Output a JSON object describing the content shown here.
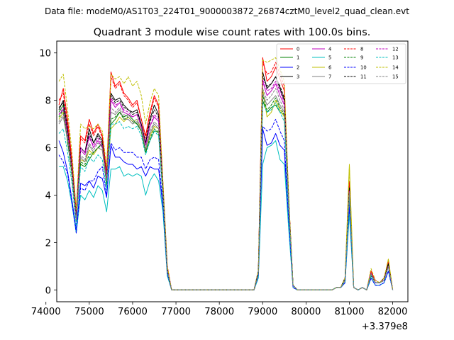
{
  "chart_data": {
    "type": "line",
    "suptitle": "Data file: modeM0/AS1T03_224T01_9000003872_26874cztM0_level2_quad_clean.evt",
    "title": "Quadrant 3 module wise count rates with 100.0s bins.",
    "xlabel": "",
    "ylabel": "",
    "x_offset_label": "+3.379e8",
    "xlim": [
      74250,
      82350
    ],
    "ylim": [
      -0.5,
      10.5
    ],
    "xticks": [
      74000,
      75000,
      76000,
      77000,
      78000,
      79000,
      80000,
      81000,
      82000
    ],
    "xtick_labels": [
      "74000",
      "75000",
      "76000",
      "77000",
      "78000",
      "79000",
      "80000",
      "81000",
      "82000"
    ],
    "yticks": [
      0,
      2,
      4,
      6,
      8,
      10
    ],
    "ytick_labels": [
      "0",
      "2",
      "4",
      "6",
      "8",
      "10"
    ],
    "grid": false,
    "legend_position": "top-right",
    "x": [
      74300,
      74400,
      74500,
      74600,
      74700,
      74800,
      74900,
      75000,
      75100,
      75200,
      75300,
      75400,
      75500,
      75600,
      75700,
      75800,
      75900,
      76000,
      76100,
      76200,
      76300,
      76400,
      76500,
      76600,
      76700,
      76800,
      76900,
      77000,
      78800,
      78900,
      79000,
      79100,
      79200,
      79300,
      79400,
      79500,
      79600,
      79700,
      79800,
      79900,
      80600,
      80700,
      80800,
      80900,
      81000,
      81100,
      81200,
      81300,
      81400,
      81500,
      81600,
      81700,
      81800,
      81900,
      82000
    ],
    "series": [
      {
        "name": "0",
        "color": "#ff0000",
        "dash": "solid",
        "values": [
          7.8,
          8.5,
          7.2,
          5.5,
          3.3,
          6.5,
          6.3,
          7.2,
          6.6,
          7.0,
          6.5,
          5.0,
          9.2,
          8.6,
          8.8,
          8.3,
          8.1,
          7.8,
          8.0,
          7.2,
          6.5,
          7.5,
          8.2,
          7.8,
          4.5,
          1.0,
          0.0,
          0.0,
          0.0,
          0.8,
          9.8,
          8.8,
          9.0,
          9.4,
          8.9,
          8.4,
          3.9,
          0.2,
          0.0,
          0.0,
          0.0,
          0.1,
          0.1,
          0.5,
          4.5,
          0.1,
          0.0,
          0.1,
          0.0,
          0.8,
          0.3,
          0.3,
          0.5,
          1.2,
          0.0
        ]
      },
      {
        "name": "1",
        "color": "#008000",
        "dash": "solid",
        "values": [
          7.5,
          7.8,
          6.2,
          5.0,
          3.0,
          5.3,
          5.2,
          5.5,
          5.8,
          6.0,
          6.2,
          4.5,
          7.0,
          7.2,
          7.5,
          7.3,
          7.4,
          7.2,
          7.0,
          6.7,
          5.8,
          6.3,
          6.7,
          6.7,
          4.0,
          0.8,
          0.0,
          0.0,
          0.0,
          0.7,
          8.0,
          7.5,
          7.7,
          7.8,
          7.5,
          7.4,
          3.6,
          0.2,
          0.0,
          0.0,
          0.0,
          0.1,
          0.1,
          0.4,
          4.0,
          0.1,
          0.0,
          0.1,
          0.0,
          0.6,
          0.3,
          0.3,
          0.4,
          1.0,
          0.0
        ]
      },
      {
        "name": "2",
        "color": "#0000ff",
        "dash": "solid",
        "values": [
          6.3,
          5.8,
          5.0,
          3.8,
          2.5,
          4.5,
          4.4,
          4.6,
          4.3,
          4.8,
          4.7,
          3.9,
          6.1,
          5.6,
          5.6,
          5.4,
          5.3,
          5.3,
          5.1,
          5.2,
          4.8,
          5.2,
          5.1,
          5.1,
          3.5,
          0.7,
          0.0,
          0.0,
          0.0,
          0.6,
          6.8,
          6.1,
          6.2,
          6.6,
          6.1,
          5.9,
          2.8,
          0.1,
          0.0,
          0.0,
          0.0,
          0.1,
          0.1,
          0.3,
          3.5,
          0.1,
          0.0,
          0.1,
          0.0,
          0.5,
          0.2,
          0.2,
          0.3,
          0.8,
          0.0
        ]
      },
      {
        "name": "3",
        "color": "#000000",
        "dash": "solid",
        "values": [
          7.6,
          8.0,
          6.8,
          5.2,
          3.1,
          6.0,
          5.8,
          6.8,
          6.2,
          6.6,
          6.3,
          4.8,
          8.3,
          8.0,
          8.1,
          7.8,
          7.6,
          7.5,
          7.6,
          7.0,
          6.2,
          7.2,
          7.8,
          7.4,
          4.3,
          0.9,
          0.0,
          0.0,
          0.0,
          0.8,
          9.2,
          8.5,
          8.7,
          9.0,
          8.5,
          8.0,
          3.8,
          0.2,
          0.0,
          0.0,
          0.0,
          0.1,
          0.1,
          0.5,
          4.4,
          0.1,
          0.0,
          0.1,
          0.0,
          0.7,
          0.3,
          0.3,
          0.5,
          1.1,
          0.0
        ]
      },
      {
        "name": "4",
        "color": "#bf00bf",
        "dash": "solid",
        "values": [
          7.4,
          7.6,
          6.6,
          5.1,
          3.0,
          5.9,
          5.7,
          6.5,
          6.0,
          6.3,
          6.0,
          4.6,
          8.0,
          7.7,
          7.9,
          7.5,
          7.4,
          7.3,
          7.4,
          6.9,
          6.1,
          6.9,
          7.3,
          7.1,
          4.2,
          0.9,
          0.0,
          0.0,
          0.0,
          0.7,
          8.8,
          8.2,
          8.4,
          8.7,
          8.2,
          7.8,
          3.7,
          0.2,
          0.0,
          0.0,
          0.0,
          0.1,
          0.1,
          0.4,
          4.2,
          0.1,
          0.0,
          0.1,
          0.0,
          0.7,
          0.3,
          0.3,
          0.4,
          1.0,
          0.0
        ]
      },
      {
        "name": "5",
        "color": "#00bfbf",
        "dash": "solid",
        "values": [
          5.2,
          5.2,
          4.6,
          3.6,
          2.4,
          4.0,
          3.8,
          4.2,
          3.9,
          4.4,
          4.2,
          3.3,
          5.1,
          5.1,
          5.2,
          4.8,
          4.9,
          4.8,
          4.9,
          4.8,
          4.0,
          4.6,
          4.9,
          4.6,
          3.3,
          0.6,
          0.0,
          0.0,
          0.0,
          0.5,
          5.3,
          6.0,
          6.1,
          6.3,
          5.5,
          5.3,
          2.6,
          0.1,
          0.0,
          0.0,
          0.0,
          0.1,
          0.1,
          0.3,
          3.2,
          0.1,
          0.0,
          0.1,
          0.0,
          0.5,
          0.2,
          0.2,
          0.3,
          0.8,
          0.0
        ]
      },
      {
        "name": "6",
        "color": "#bfbf00",
        "dash": "solid",
        "values": [
          7.2,
          7.5,
          6.4,
          5.0,
          2.9,
          5.5,
          5.4,
          5.9,
          5.7,
          6.0,
          5.9,
          4.5,
          6.8,
          7.0,
          7.3,
          7.1,
          7.3,
          7.1,
          7.2,
          6.8,
          5.9,
          6.5,
          6.9,
          6.8,
          4.0,
          0.8,
          0.0,
          0.0,
          0.0,
          0.7,
          8.5,
          7.3,
          7.5,
          8.0,
          7.6,
          7.3,
          3.5,
          0.2,
          0.0,
          0.0,
          0.0,
          0.1,
          0.1,
          0.4,
          5.3,
          0.1,
          0.0,
          0.1,
          0.0,
          0.6,
          0.3,
          0.3,
          0.4,
          1.3,
          0.0
        ]
      },
      {
        "name": "7",
        "color": "#808080",
        "dash": "solid",
        "values": [
          7.0,
          7.3,
          6.3,
          4.9,
          2.9,
          5.6,
          5.4,
          6.1,
          5.8,
          6.0,
          5.9,
          4.5,
          7.5,
          7.4,
          7.6,
          7.2,
          7.2,
          7.0,
          7.1,
          6.7,
          5.9,
          6.6,
          7.0,
          6.8,
          4.0,
          0.8,
          0.0,
          0.0,
          0.0,
          0.7,
          8.3,
          7.8,
          8.0,
          8.2,
          7.8,
          7.5,
          3.6,
          0.2,
          0.0,
          0.0,
          0.0,
          0.1,
          0.1,
          0.4,
          4.1,
          0.1,
          0.0,
          0.1,
          0.0,
          0.6,
          0.3,
          0.3,
          0.4,
          1.0,
          0.0
        ]
      },
      {
        "name": "8",
        "color": "#ff0000",
        "dash": "dashed",
        "values": [
          8.0,
          8.3,
          7.0,
          5.4,
          3.2,
          6.4,
          6.2,
          7.0,
          6.5,
          6.9,
          6.4,
          4.9,
          9.0,
          8.5,
          8.7,
          8.2,
          8.0,
          7.7,
          7.9,
          7.2,
          6.4,
          7.4,
          8.1,
          7.7,
          4.5,
          1.0,
          0.0,
          0.0,
          0.0,
          0.8,
          9.6,
          9.1,
          9.2,
          9.6,
          9.1,
          8.6,
          3.9,
          0.2,
          0.0,
          0.0,
          0.0,
          0.1,
          0.1,
          0.5,
          4.6,
          0.1,
          0.0,
          0.1,
          0.0,
          0.8,
          0.4,
          0.3,
          0.5,
          1.2,
          0.0
        ]
      },
      {
        "name": "9",
        "color": "#008000",
        "dash": "dashed",
        "values": [
          7.3,
          7.6,
          6.3,
          4.8,
          2.9,
          5.4,
          5.3,
          5.7,
          5.8,
          6.0,
          6.1,
          4.4,
          7.2,
          7.3,
          7.5,
          7.2,
          7.3,
          7.1,
          7.0,
          6.7,
          5.8,
          6.4,
          6.8,
          6.6,
          4.0,
          0.8,
          0.0,
          0.0,
          0.0,
          0.7,
          8.2,
          7.6,
          7.8,
          8.1,
          7.7,
          7.4,
          3.6,
          0.2,
          0.0,
          0.0,
          0.0,
          0.1,
          0.1,
          0.4,
          4.1,
          0.1,
          0.0,
          0.1,
          0.0,
          0.6,
          0.3,
          0.3,
          0.4,
          1.0,
          0.0
        ]
      },
      {
        "name": "10",
        "color": "#0000ff",
        "dash": "dashed",
        "values": [
          5.7,
          5.4,
          4.9,
          3.7,
          2.4,
          4.3,
          4.2,
          4.6,
          4.6,
          5.0,
          5.2,
          4.0,
          6.2,
          5.9,
          6.0,
          5.8,
          5.8,
          5.8,
          5.6,
          5.6,
          5.1,
          5.5,
          5.6,
          5.5,
          3.6,
          0.7,
          0.0,
          0.0,
          0.0,
          0.6,
          6.9,
          6.7,
          6.8,
          7.2,
          6.7,
          6.3,
          3.0,
          0.1,
          0.0,
          0.0,
          0.0,
          0.1,
          0.1,
          0.3,
          3.6,
          0.1,
          0.0,
          0.1,
          0.0,
          0.5,
          0.2,
          0.2,
          0.3,
          0.8,
          0.0
        ]
      },
      {
        "name": "11",
        "color": "#000000",
        "dash": "dashed",
        "values": [
          7.7,
          7.9,
          6.7,
          5.1,
          3.1,
          6.0,
          5.8,
          6.6,
          6.2,
          6.5,
          6.2,
          4.7,
          8.2,
          7.9,
          8.0,
          7.7,
          7.6,
          7.4,
          7.5,
          7.0,
          6.2,
          7.1,
          7.6,
          7.3,
          4.3,
          0.9,
          0.0,
          0.0,
          0.0,
          0.8,
          9.0,
          8.6,
          8.7,
          9.0,
          8.6,
          8.1,
          3.8,
          0.2,
          0.0,
          0.0,
          0.0,
          0.1,
          0.1,
          0.5,
          4.3,
          0.1,
          0.0,
          0.1,
          0.0,
          0.7,
          0.3,
          0.3,
          0.5,
          1.1,
          0.0
        ]
      },
      {
        "name": "12",
        "color": "#bf00bf",
        "dash": "dashed",
        "values": [
          7.4,
          7.7,
          6.6,
          5.1,
          3.0,
          6.0,
          5.8,
          6.4,
          6.1,
          6.4,
          6.1,
          4.7,
          8.1,
          7.8,
          7.9,
          7.6,
          7.5,
          7.3,
          7.4,
          6.9,
          6.1,
          6.9,
          7.4,
          7.2,
          4.2,
          0.9,
          0.0,
          0.0,
          0.0,
          0.7,
          8.9,
          8.4,
          8.5,
          8.8,
          8.4,
          7.9,
          3.7,
          0.2,
          0.0,
          0.0,
          0.0,
          0.1,
          0.1,
          0.4,
          4.2,
          0.1,
          0.0,
          0.1,
          0.0,
          0.7,
          0.3,
          0.3,
          0.4,
          1.0,
          0.0
        ]
      },
      {
        "name": "13",
        "color": "#00bfbf",
        "dash": "dashed",
        "values": [
          6.6,
          6.8,
          5.8,
          4.5,
          2.7,
          5.2,
          5.0,
          5.6,
          5.4,
          5.7,
          5.5,
          4.2,
          7.0,
          7.0,
          7.1,
          6.8,
          6.9,
          6.8,
          6.9,
          6.5,
          5.7,
          6.3,
          6.7,
          6.5,
          3.9,
          0.8,
          0.0,
          0.0,
          0.0,
          0.7,
          7.9,
          7.5,
          7.6,
          7.9,
          7.5,
          7.1,
          3.4,
          0.2,
          0.0,
          0.0,
          0.0,
          0.1,
          0.1,
          0.4,
          4.0,
          0.1,
          0.0,
          0.1,
          0.0,
          0.6,
          0.3,
          0.3,
          0.4,
          1.0,
          0.0
        ]
      },
      {
        "name": "14",
        "color": "#bfbf00",
        "dash": "dashed",
        "values": [
          8.8,
          9.1,
          7.6,
          5.8,
          3.4,
          7.0,
          6.8,
          6.9,
          6.8,
          7.0,
          6.7,
          5.2,
          9.1,
          8.9,
          9.0,
          8.7,
          9.0,
          8.6,
          8.8,
          8.2,
          7.0,
          7.9,
          8.5,
          8.2,
          4.6,
          1.0,
          0.0,
          0.0,
          0.0,
          0.8,
          9.7,
          9.6,
          9.7,
          9.8,
          9.3,
          8.8,
          4.0,
          0.2,
          0.0,
          0.0,
          0.0,
          0.1,
          0.1,
          0.5,
          5.2,
          0.1,
          0.0,
          0.1,
          0.0,
          0.9,
          0.4,
          0.3,
          0.5,
          1.3,
          0.0
        ]
      },
      {
        "name": "15",
        "color": "#808080",
        "dash": "dashed",
        "values": [
          7.1,
          7.4,
          6.4,
          5.0,
          2.9,
          5.7,
          5.5,
          6.2,
          5.9,
          6.2,
          6.0,
          4.6,
          7.7,
          7.5,
          7.7,
          7.4,
          7.3,
          7.1,
          7.2,
          6.8,
          6.0,
          6.7,
          7.1,
          6.9,
          4.1,
          0.8,
          0.0,
          0.0,
          0.0,
          0.7,
          8.5,
          8.0,
          8.2,
          8.5,
          8.0,
          7.6,
          3.7,
          0.2,
          0.0,
          0.0,
          0.0,
          0.1,
          0.1,
          0.4,
          4.1,
          0.1,
          0.0,
          0.1,
          0.0,
          0.7,
          0.3,
          0.3,
          0.4,
          1.0,
          0.0
        ]
      }
    ]
  }
}
